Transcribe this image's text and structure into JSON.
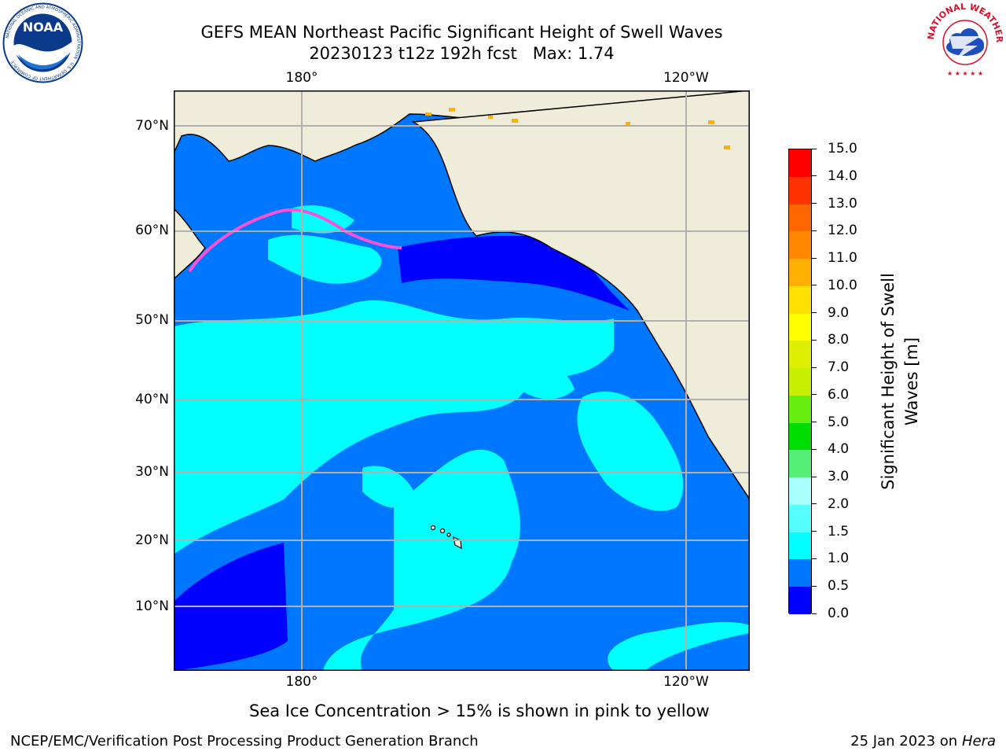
{
  "header": {
    "title_line1": "GEFS MEAN Northeast Pacific Significant Height of Swell Waves",
    "title_line2": "20230123 t12z 192h fcst   Max: 1.74"
  },
  "logos": {
    "left": {
      "text": "NOAA",
      "ring_text": "NATIONAL OCEANIC AND ATMOSPHERIC ADMINISTRATION · U.S. DEPARTMENT OF COMMERCE",
      "colors": {
        "disk": "#0b3a8a",
        "ring": "#ffffff"
      }
    },
    "right": {
      "ring_text": "NATIONAL WEATHER SERVICE",
      "colors": {
        "ring": "#d8102b",
        "cloud": "#1f4fbf"
      }
    }
  },
  "map": {
    "top_lon_labels": [
      "180°",
      "120°W"
    ],
    "bottom_lon_labels": [
      "180°",
      "120°W"
    ],
    "lat_labels": [
      "70°N",
      "60°N",
      "50°N",
      "40°N",
      "30°N",
      "20°N",
      "10°N"
    ],
    "colors": {
      "land": "#efedd9",
      "ice": "#ff4fd8",
      "grid": "#b0b0b0"
    }
  },
  "colorbar": {
    "label_line1": "Significant Height of Swell",
    "label_line2": "Waves [m]",
    "ticks": [
      "15.0",
      "14.0",
      "13.0",
      "12.0",
      "11.0",
      "10.0",
      "9.0",
      "8.0",
      "7.0",
      "6.0",
      "5.0",
      "4.0",
      "3.0",
      "2.0",
      "1.5",
      "1.0",
      "0.5",
      "0.0"
    ],
    "bins_top_to_bottom": [
      "#ff0000",
      "#ff3300",
      "#ff6600",
      "#ff8800",
      "#ffb000",
      "#ffe000",
      "#ffff00",
      "#ddee00",
      "#c8ee00",
      "#66ee11",
      "#00dd00",
      "#55ee77",
      "#aaffff",
      "#55ffff",
      "#00ffff",
      "#0077ff",
      "#0000ff"
    ]
  },
  "note": "Sea Ice Concentration > 15% is shown in pink to yellow",
  "footer": {
    "left": "NCEP/EMC/Verification Post Processing Product Generation Branch",
    "right_prefix": "25 Jan 2023 on ",
    "right_host": "Hera"
  }
}
